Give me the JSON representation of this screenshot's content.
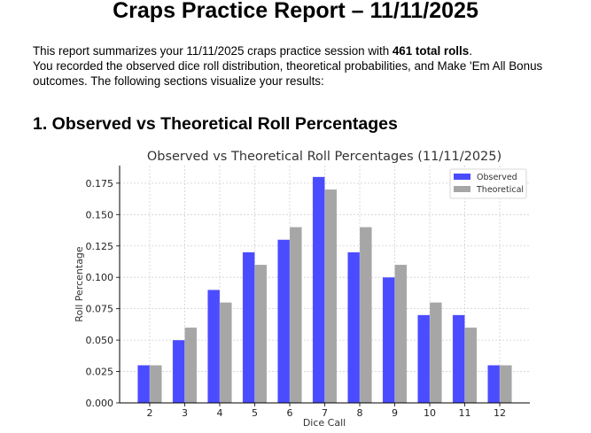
{
  "report": {
    "title": "Craps Practice Report – 11/11/2025",
    "intro_part1": "This report summarizes your 11/11/2025 craps practice session with ",
    "intro_bold": "461 total rolls",
    "intro_part2": ".",
    "intro_line2": "You recorded the observed dice roll distribution, theoretical probabilities, and Make 'Em All Bonus outcomes. The following sections visualize your results:",
    "section1_heading": "1. Observed vs Theoretical Roll Percentages"
  },
  "chart_data": {
    "type": "bar",
    "title": "Observed vs Theoretical Roll Percentages (11/11/2025)",
    "xlabel": "Dice Call",
    "ylabel": "Roll Percentage",
    "categories": [
      "2",
      "3",
      "4",
      "5",
      "6",
      "7",
      "8",
      "9",
      "10",
      "11",
      "12"
    ],
    "series": [
      {
        "name": "Observed",
        "color": "#4b4bff",
        "values": [
          0.03,
          0.05,
          0.09,
          0.12,
          0.13,
          0.18,
          0.12,
          0.1,
          0.07,
          0.07,
          0.03
        ]
      },
      {
        "name": "Theoretical",
        "color": "#a6a6a6",
        "values": [
          0.03,
          0.06,
          0.08,
          0.11,
          0.14,
          0.17,
          0.14,
          0.11,
          0.08,
          0.06,
          0.03
        ]
      }
    ],
    "yticks": [
      "0.000",
      "0.025",
      "0.050",
      "0.075",
      "0.100",
      "0.125",
      "0.150",
      "0.175"
    ],
    "ylim": [
      0,
      0.189
    ],
    "grid": true,
    "legend": "top-right"
  }
}
